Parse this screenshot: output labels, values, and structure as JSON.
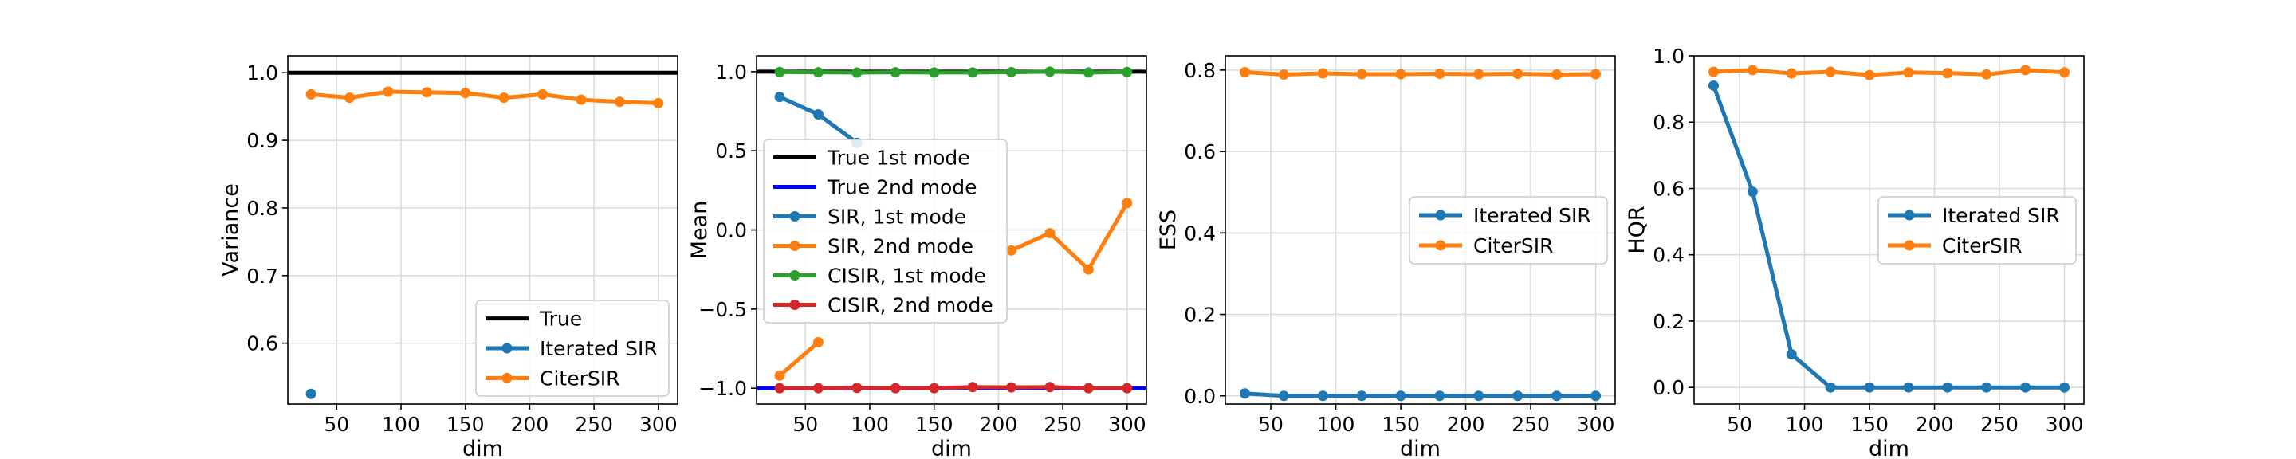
{
  "chart_data": [
    {
      "type": "line",
      "xlabel": "dim",
      "ylabel": "Variance",
      "xlim": [
        12,
        315
      ],
      "ylim": [
        0.51,
        1.025
      ],
      "xticks": [
        50,
        100,
        150,
        200,
        250,
        300
      ],
      "yticks": [
        0.6,
        0.7,
        0.8,
        0.9,
        1.0
      ],
      "ytick_labels": [
        "0.6",
        "0.7",
        "0.8",
        "0.9",
        "1.0"
      ],
      "grid": true,
      "legend": "bottom-right",
      "x": [
        30,
        60,
        90,
        120,
        150,
        180,
        210,
        240,
        270,
        300
      ],
      "series": [
        {
          "name": "True",
          "color": "#000000",
          "marker": false,
          "hline": 1.0
        },
        {
          "name": "Iterated SIR",
          "color": "#1f77b4",
          "marker": true,
          "x": [
            30
          ],
          "values": [
            0.525
          ]
        },
        {
          "name": "CiterSIR",
          "color": "#ff7f0e",
          "marker": true,
          "values": [
            0.968,
            0.963,
            0.972,
            0.971,
            0.97,
            0.963,
            0.968,
            0.96,
            0.957,
            0.955
          ]
        }
      ]
    },
    {
      "type": "line",
      "xlabel": "dim",
      "ylabel": "Mean",
      "xlim": [
        12,
        315
      ],
      "ylim": [
        -1.1,
        1.1
      ],
      "xticks": [
        50,
        100,
        150,
        200,
        250,
        300
      ],
      "yticks": [
        -1.0,
        -0.5,
        0.0,
        0.5,
        1.0
      ],
      "ytick_labels": [
        "−1.0",
        "−0.5",
        "0.0",
        "0.5",
        "1.0"
      ],
      "grid": true,
      "legend": "center-left",
      "x": [
        30,
        60,
        90,
        120,
        150,
        180,
        210,
        240,
        270,
        300
      ],
      "series": [
        {
          "name": "True 1st mode",
          "color": "#000000",
          "marker": false,
          "hline": 1.0
        },
        {
          "name": "True 2nd mode",
          "color": "#0000ff",
          "marker": false,
          "hline": -1.0
        },
        {
          "name": "SIR, 1st mode",
          "color": "#1f77b4",
          "marker": true,
          "x": [
            30,
            60,
            90
          ],
          "values": [
            0.84,
            0.73,
            0.55
          ]
        },
        {
          "name": "SIR, 2nd mode",
          "color": "#ff7f0e",
          "marker": true,
          "segments": [
            {
              "x": [
                30,
                60
              ],
              "values": [
                -0.92,
                -0.71
              ]
            },
            {
              "x": [
                210,
                240,
                270,
                300
              ],
              "values": [
                -0.13,
                -0.02,
                -0.25,
                0.17
              ]
            }
          ]
        },
        {
          "name": "CISIR, 1st mode",
          "color": "#2ca02c",
          "marker": true,
          "values": [
            0.998,
            0.996,
            0.994,
            0.996,
            0.995,
            0.995,
            0.997,
            1.0,
            0.995,
            0.998
          ]
        },
        {
          "name": "CISIR, 2nd mode",
          "color": "#d62728",
          "marker": true,
          "values": [
            -1.0,
            -1.0,
            -0.998,
            -1.0,
            -1.0,
            -0.993,
            -0.995,
            -0.993,
            -1.0,
            -1.0
          ]
        }
      ]
    },
    {
      "type": "line",
      "xlabel": "dim",
      "ylabel": "ESS",
      "xlim": [
        15,
        315
      ],
      "ylim": [
        -0.02,
        0.835
      ],
      "xticks": [
        50,
        100,
        150,
        200,
        250,
        300
      ],
      "yticks": [
        0.0,
        0.2,
        0.4,
        0.6,
        0.8
      ],
      "ytick_labels": [
        "0.0",
        "0.2",
        "0.4",
        "0.6",
        "0.8"
      ],
      "grid": true,
      "legend": "center-right",
      "x": [
        30,
        60,
        90,
        120,
        150,
        180,
        210,
        240,
        270,
        300
      ],
      "series": [
        {
          "name": "Iterated SIR",
          "color": "#1f77b4",
          "marker": true,
          "values": [
            0.006,
            0.0,
            0.0,
            0.0,
            0.0,
            0.0,
            0.0,
            0.0,
            0.0,
            0.0
          ]
        },
        {
          "name": "CiterSIR",
          "color": "#ff7f0e",
          "marker": true,
          "values": [
            0.795,
            0.789,
            0.792,
            0.79,
            0.79,
            0.791,
            0.79,
            0.791,
            0.789,
            0.79
          ]
        }
      ]
    },
    {
      "type": "line",
      "xlabel": "dim",
      "ylabel": "HQR",
      "xlim": [
        15,
        315
      ],
      "ylim": [
        -0.05,
        1.0
      ],
      "xticks": [
        50,
        100,
        150,
        200,
        250,
        300
      ],
      "yticks": [
        0.0,
        0.2,
        0.4,
        0.6,
        0.8,
        1.0
      ],
      "ytick_labels": [
        "0.0",
        "0.2",
        "0.4",
        "0.6",
        "0.8",
        "1.0"
      ],
      "grid": true,
      "legend": "center-right",
      "x": [
        30,
        60,
        90,
        120,
        150,
        180,
        210,
        240,
        270,
        300
      ],
      "series": [
        {
          "name": "Iterated SIR",
          "color": "#1f77b4",
          "marker": true,
          "values": [
            0.91,
            0.59,
            0.1,
            0.0,
            0.0,
            0.0,
            0.0,
            0.0,
            0.0,
            0.0
          ]
        },
        {
          "name": "CiterSIR",
          "color": "#ff7f0e",
          "marker": true,
          "values": [
            0.952,
            0.957,
            0.947,
            0.952,
            0.942,
            0.95,
            0.948,
            0.944,
            0.957,
            0.95
          ]
        }
      ]
    }
  ]
}
